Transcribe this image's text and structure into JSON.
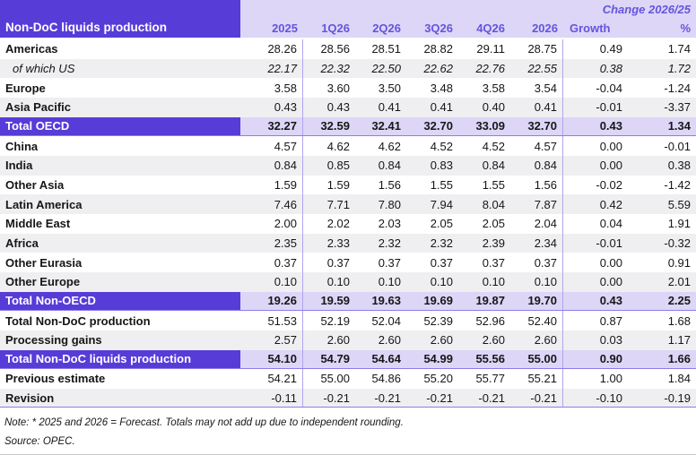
{
  "header": {
    "title": "Non-DoC liquids production",
    "change_label": "Change 2026/25",
    "columns": [
      "2025",
      "1Q26",
      "2Q26",
      "3Q26",
      "4Q26",
      "2026",
      "Growth",
      "%"
    ]
  },
  "rows": [
    {
      "label": "Americas",
      "style": "normal",
      "values": [
        "28.26",
        "28.56",
        "28.51",
        "28.82",
        "29.11",
        "28.75",
        "0.49",
        "1.74"
      ]
    },
    {
      "label": "of which US",
      "style": "sub",
      "values": [
        "22.17",
        "22.32",
        "22.50",
        "22.62",
        "22.76",
        "22.55",
        "0.38",
        "1.72"
      ]
    },
    {
      "label": "Europe",
      "style": "normal",
      "values": [
        "3.58",
        "3.60",
        "3.50",
        "3.48",
        "3.58",
        "3.54",
        "-0.04",
        "-1.24"
      ]
    },
    {
      "label": "Asia Pacific",
      "style": "normal",
      "values": [
        "0.43",
        "0.43",
        "0.41",
        "0.41",
        "0.40",
        "0.41",
        "-0.01",
        "-3.37"
      ]
    },
    {
      "label": "Total OECD",
      "style": "total",
      "values": [
        "32.27",
        "32.59",
        "32.41",
        "32.70",
        "33.09",
        "32.70",
        "0.43",
        "1.34"
      ]
    },
    {
      "label": "China",
      "style": "normal",
      "values": [
        "4.57",
        "4.62",
        "4.62",
        "4.52",
        "4.52",
        "4.57",
        "0.00",
        "-0.01"
      ]
    },
    {
      "label": "India",
      "style": "normal",
      "values": [
        "0.84",
        "0.85",
        "0.84",
        "0.83",
        "0.84",
        "0.84",
        "0.00",
        "0.38"
      ]
    },
    {
      "label": "Other Asia",
      "style": "normal",
      "values": [
        "1.59",
        "1.59",
        "1.56",
        "1.55",
        "1.55",
        "1.56",
        "-0.02",
        "-1.42"
      ]
    },
    {
      "label": "Latin America",
      "style": "normal",
      "values": [
        "7.46",
        "7.71",
        "7.80",
        "7.94",
        "8.04",
        "7.87",
        "0.42",
        "5.59"
      ]
    },
    {
      "label": "Middle East",
      "style": "normal",
      "values": [
        "2.00",
        "2.02",
        "2.03",
        "2.05",
        "2.05",
        "2.04",
        "0.04",
        "1.91"
      ]
    },
    {
      "label": "Africa",
      "style": "normal",
      "values": [
        "2.35",
        "2.33",
        "2.32",
        "2.32",
        "2.39",
        "2.34",
        "-0.01",
        "-0.32"
      ]
    },
    {
      "label": "Other Eurasia",
      "style": "normal",
      "values": [
        "0.37",
        "0.37",
        "0.37",
        "0.37",
        "0.37",
        "0.37",
        "0.00",
        "0.91"
      ]
    },
    {
      "label": "Other Europe",
      "style": "normal",
      "values": [
        "0.10",
        "0.10",
        "0.10",
        "0.10",
        "0.10",
        "0.10",
        "0.00",
        "2.01"
      ]
    },
    {
      "label": "Total Non-OECD",
      "style": "total",
      "values": [
        "19.26",
        "19.59",
        "19.63",
        "19.69",
        "19.87",
        "19.70",
        "0.43",
        "2.25"
      ]
    },
    {
      "label": "Total Non-DoC production",
      "style": "normal",
      "values": [
        "51.53",
        "52.19",
        "52.04",
        "52.39",
        "52.96",
        "52.40",
        "0.87",
        "1.68"
      ]
    },
    {
      "label": "Processing gains",
      "style": "normal",
      "values": [
        "2.57",
        "2.60",
        "2.60",
        "2.60",
        "2.60",
        "2.60",
        "0.03",
        "1.17"
      ]
    },
    {
      "label": "Total Non-DoC liquids production",
      "style": "total",
      "values": [
        "54.10",
        "54.79",
        "54.64",
        "54.99",
        "55.56",
        "55.00",
        "0.90",
        "1.66"
      ]
    },
    {
      "label": "Previous estimate",
      "style": "normal",
      "values": [
        "54.21",
        "55.00",
        "54.86",
        "55.20",
        "55.77",
        "55.21",
        "1.00",
        "1.84"
      ]
    },
    {
      "label": "Revision",
      "style": "normal",
      "values": [
        "-0.11",
        "-0.21",
        "-0.21",
        "-0.21",
        "-0.21",
        "-0.21",
        "-0.10",
        "-0.19"
      ]
    }
  ],
  "footer": {
    "note": "Note: * 2025 and 2026 = Forecast. Totals may not add up due to independent rounding.",
    "source": "Source: OPEC."
  },
  "colors": {
    "header_purple": "#573cd8",
    "header_lavender": "#ddd6f6",
    "row_alt_gray": "#efeff1",
    "header_text_purple": "#6355de",
    "column_separator": "#b2a4ec",
    "total_row_border": "#8b7de9",
    "bottom_rule_gray": "#c8c8c8"
  }
}
